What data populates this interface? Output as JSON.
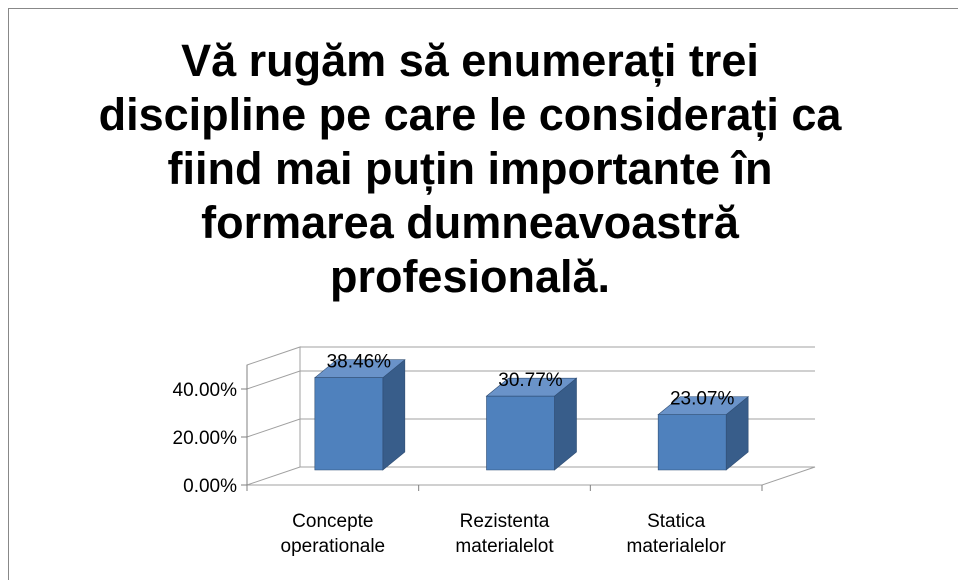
{
  "chart_data": {
    "type": "bar3d",
    "title": "Vă rugăm să enumerați trei discipline pe care le considerați ca fiind mai puțin importante în formarea dumneavoastră profesională.",
    "categories": [
      [
        "Concepte",
        "operationale"
      ],
      [
        "Rezistenta",
        "materialelot"
      ],
      [
        "Statica",
        "materialelor"
      ]
    ],
    "values": [
      38.46,
      30.77,
      23.07
    ],
    "value_labels": [
      "38.46%",
      "30.77%",
      "23.07%"
    ],
    "color": "#4f81bd",
    "ylim": [
      0,
      50
    ],
    "yticks": [
      {
        "value": 0,
        "label": "0.00%"
      },
      {
        "value": 20,
        "label": "20.00%"
      },
      {
        "value": 40,
        "label": "40.00%"
      }
    ],
    "grid": true
  }
}
